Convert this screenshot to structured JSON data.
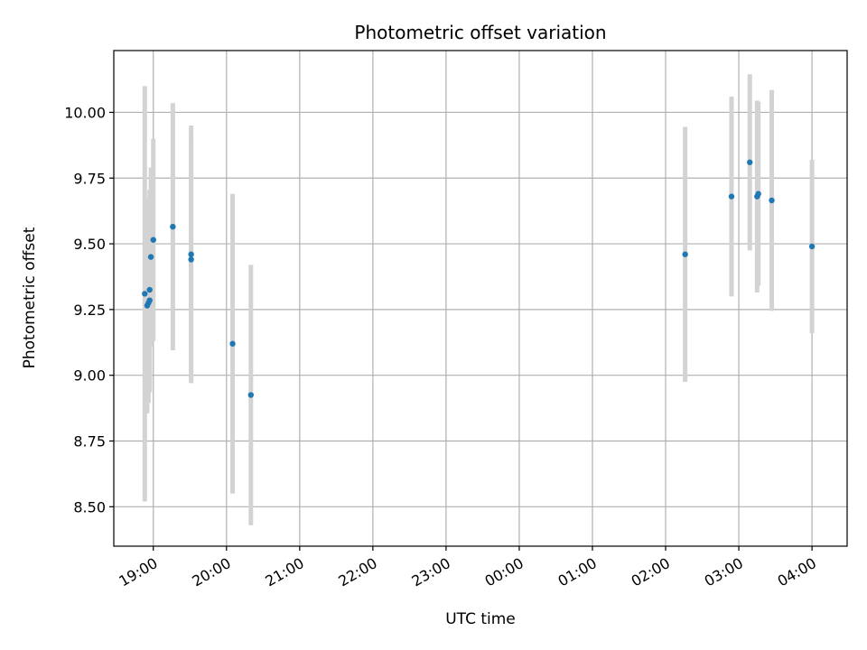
{
  "chart_data": {
    "type": "scatter",
    "title": "Photometric offset variation",
    "xlabel": "UTC time",
    "ylabel": "Photometric offset",
    "x_ticks": [
      "19:00",
      "20:00",
      "21:00",
      "22:00",
      "23:00",
      "00:00",
      "01:00",
      "02:00",
      "03:00",
      "04:00"
    ],
    "x_tick_hours": [
      19,
      20,
      21,
      22,
      23,
      24,
      25,
      26,
      27,
      28
    ],
    "xlim_hours": [
      18.46,
      28.48
    ],
    "y_ticks": [
      "8.50",
      "8.75",
      "9.00",
      "9.25",
      "9.50",
      "9.75",
      "10.00"
    ],
    "y_tick_values": [
      8.5,
      8.75,
      9.0,
      9.25,
      9.5,
      9.75,
      10.0
    ],
    "ylim": [
      8.35,
      10.235
    ],
    "grid": true,
    "marker_color": "#1f77b4",
    "errorbar_color": "#d3d3d3",
    "points": [
      {
        "t": "18:53",
        "y": 9.31,
        "err": 0.79
      },
      {
        "t": "18:55",
        "y": 9.265,
        "err": 0.41
      },
      {
        "t": "18:56",
        "y": 9.275,
        "err": 0.38
      },
      {
        "t": "18:57",
        "y": 9.325,
        "err": 0.38
      },
      {
        "t": "18:57",
        "y": 9.285,
        "err": 0.35
      },
      {
        "t": "18:58",
        "y": 9.45,
        "err": 0.34
      },
      {
        "t": "19:00",
        "y": 9.515,
        "err": 0.385
      },
      {
        "t": "19:16",
        "y": 9.565,
        "err": 0.47
      },
      {
        "t": "19:31",
        "y": 9.46,
        "err": 0.49
      },
      {
        "t": "19:31",
        "y": 9.44,
        "err": 0.46
      },
      {
        "t": "20:05",
        "y": 9.12,
        "err": 0.57
      },
      {
        "t": "20:20",
        "y": 8.925,
        "err": 0.495
      },
      {
        "t": "02:16",
        "y": 9.46,
        "err": 0.485
      },
      {
        "t": "02:54",
        "y": 9.68,
        "err": 0.38
      },
      {
        "t": "03:09",
        "y": 9.81,
        "err": 0.335
      },
      {
        "t": "03:15",
        "y": 9.68,
        "err": 0.365
      },
      {
        "t": "03:16",
        "y": 9.69,
        "err": 0.35
      },
      {
        "t": "03:27",
        "y": 9.665,
        "err": 0.42
      },
      {
        "t": "04:00",
        "y": 9.49,
        "err": 0.33
      }
    ]
  }
}
